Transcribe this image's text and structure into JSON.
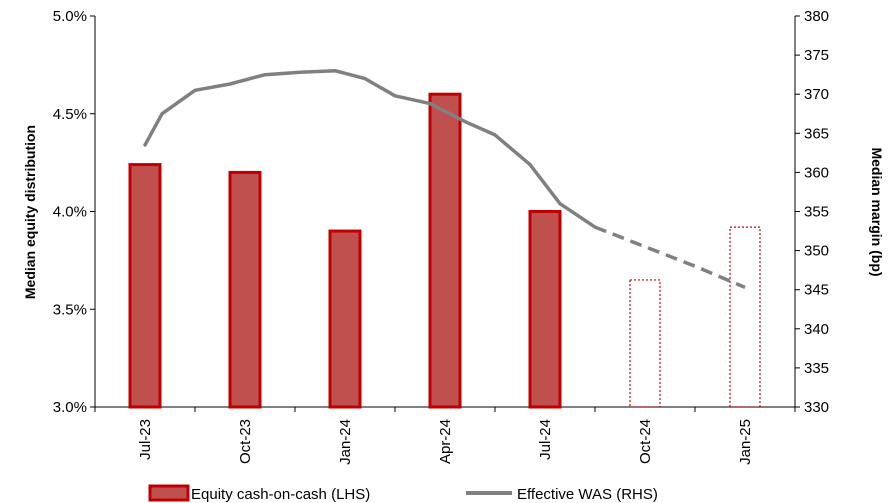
{
  "chart_data": {
    "type": "bar+line",
    "categories": [
      "Jul-23",
      "Oct-23",
      "Jan-24",
      "Apr-24",
      "Jul-24",
      "Oct-24",
      "Jan-25"
    ],
    "left_axis": {
      "label": "Median equity distribution",
      "ylim": [
        3.0,
        5.0
      ],
      "ticks": [
        "3.0%",
        "3.5%",
        "4.0%",
        "4.5%",
        "5.0%"
      ],
      "tick_values": [
        3.0,
        3.5,
        4.0,
        4.5,
        5.0
      ]
    },
    "right_axis": {
      "label": "Median margin (bp)",
      "ylim": [
        330,
        380
      ],
      "ticks": [
        "330",
        "335",
        "340",
        "345",
        "350",
        "355",
        "360",
        "365",
        "370",
        "375",
        "380"
      ],
      "tick_values": [
        330,
        335,
        340,
        345,
        350,
        355,
        360,
        365,
        370,
        375,
        380
      ]
    },
    "bars": {
      "name": "Equity cash-on-cash (LHS)",
      "color": "#c0504d",
      "border_color": "#c00000",
      "values": [
        4.24,
        4.2,
        3.9,
        4.6,
        4.0,
        3.65,
        3.92
      ],
      "projected": [
        false,
        false,
        false,
        false,
        false,
        true,
        true
      ]
    },
    "line": {
      "name": "Effective WAS (RHS)",
      "color": "#808080",
      "points": [
        {
          "x": 0.0,
          "y": 363.5
        },
        {
          "x": 0.17,
          "y": 367.5
        },
        {
          "x": 0.5,
          "y": 370.5
        },
        {
          "x": 0.85,
          "y": 371.3
        },
        {
          "x": 1.2,
          "y": 372.5
        },
        {
          "x": 1.55,
          "y": 372.8
        },
        {
          "x": 1.9,
          "y": 373.0
        },
        {
          "x": 2.2,
          "y": 372.0
        },
        {
          "x": 2.5,
          "y": 369.8
        },
        {
          "x": 2.85,
          "y": 368.8
        },
        {
          "x": 3.2,
          "y": 366.5
        },
        {
          "x": 3.5,
          "y": 364.8
        },
        {
          "x": 3.85,
          "y": 361.0
        },
        {
          "x": 4.15,
          "y": 356.0
        },
        {
          "x": 4.5,
          "y": 353.0
        }
      ],
      "projected_points": [
        {
          "x": 4.5,
          "y": 353.0
        },
        {
          "x": 5.0,
          "y": 350.5
        },
        {
          "x": 5.5,
          "y": 348.0
        },
        {
          "x": 6.0,
          "y": 345.3
        }
      ]
    },
    "legend": {
      "position": "bottom",
      "entries": [
        {
          "label": "Equity cash-on-cash (LHS)",
          "kind": "bar"
        },
        {
          "label": "Effective WAS (RHS)",
          "kind": "line"
        }
      ]
    },
    "grid": false
  }
}
